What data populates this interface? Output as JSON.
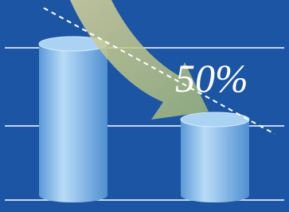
{
  "chart_data": {
    "type": "bar",
    "categories": [
      null,
      null
    ],
    "values": [
      100,
      50
    ],
    "color": "#8ec3ee",
    "ylim": [
      0,
      100
    ],
    "annotation": "50%"
  }
}
